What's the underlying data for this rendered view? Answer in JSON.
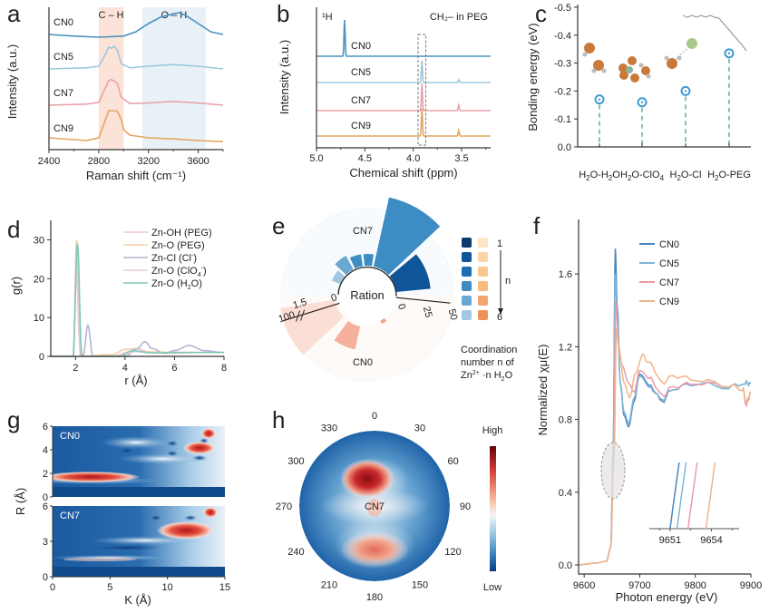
{
  "chart_data": [
    {
      "panel": "a",
      "type": "line",
      "xlabel": "Raman shift (cm⁻¹)",
      "ylabel": "Intensity (a.u.)",
      "xlim": [
        2400,
        3800
      ],
      "xticks": [
        "2400",
        "2800",
        "3200",
        "3600"
      ],
      "bands": [
        {
          "label": "C – H",
          "range": [
            2800,
            3000
          ],
          "color": "#fbe3d8"
        },
        {
          "label": "O – H",
          "range": [
            3150,
            3660
          ],
          "color": "#e8f1f8"
        }
      ],
      "series": [
        {
          "name": "CN0",
          "color": "#4b93bf",
          "x": [
            2400,
            2600,
            2800,
            2900,
            3000,
            3100,
            3200,
            3300,
            3400,
            3450,
            3500,
            3600,
            3700,
            3800
          ],
          "y": [
            0.0,
            -0.03,
            -0.05,
            -0.04,
            -0.03,
            0.05,
            0.2,
            0.32,
            0.38,
            0.4,
            0.35,
            0.2,
            0.05,
            0.0
          ]
        },
        {
          "name": "CN5",
          "color": "#9cc8de",
          "x": [
            2400,
            2700,
            2800,
            2850,
            2880,
            2900,
            2920,
            2950,
            2980,
            3050,
            3200,
            3400,
            3600,
            3800
          ],
          "y": [
            0.0,
            0.02,
            0.05,
            0.25,
            0.4,
            0.38,
            0.42,
            0.35,
            0.1,
            0.02,
            0.05,
            0.08,
            0.05,
            0.0
          ]
        },
        {
          "name": "CN7",
          "color": "#e8a3ab",
          "x": [
            2400,
            2700,
            2800,
            2850,
            2880,
            2900,
            2920,
            2950,
            2980,
            3050,
            3200,
            3400,
            3600,
            3800
          ],
          "y": [
            0.0,
            0.02,
            0.05,
            0.3,
            0.45,
            0.47,
            0.45,
            0.4,
            0.15,
            0.03,
            0.04,
            0.07,
            0.04,
            0.0
          ]
        },
        {
          "name": "CN9",
          "color": "#e5a55f",
          "x": [
            2400,
            2700,
            2800,
            2850,
            2880,
            2900,
            2950,
            2980,
            3000,
            3050,
            3200,
            3400,
            3600,
            3800
          ],
          "y": [
            0.05,
            0.0,
            0.05,
            0.35,
            0.55,
            0.55,
            0.54,
            0.4,
            0.2,
            0.1,
            0.05,
            0.03,
            0.0,
            -0.02
          ]
        }
      ]
    },
    {
      "panel": "b",
      "type": "line",
      "xlabel": "Chemical shift (ppm)",
      "ylabel": "Intensity (a.u.)",
      "xlim": [
        5.0,
        3.2
      ],
      "xticks": [
        "5.0",
        "4.5",
        "4.0",
        "3.5"
      ],
      "annotations": [
        "¹H",
        "CH₂– in PEG"
      ],
      "highlight_range": [
        3.87,
        3.95
      ],
      "series": [
        {
          "name": "CN0",
          "color": "#4b93bf",
          "peaks": [
            [
              4.71,
              1.0
            ]
          ]
        },
        {
          "name": "CN5",
          "color": "#9cc8de",
          "peaks": [
            [
              3.91,
              0.6
            ],
            [
              3.53,
              0.08
            ]
          ]
        },
        {
          "name": "CN7",
          "color": "#e8a3ab",
          "peaks": [
            [
              3.91,
              0.75
            ],
            [
              3.53,
              0.15
            ]
          ]
        },
        {
          "name": "CN9",
          "color": "#e5a55f",
          "peaks": [
            [
              3.91,
              0.75
            ],
            [
              3.53,
              0.15
            ]
          ]
        }
      ]
    },
    {
      "panel": "c",
      "type": "scatter",
      "ylabel": "Bonding energy (eV)",
      "ylim": [
        0.0,
        -0.5
      ],
      "yticks": [
        "0.0",
        "-0.1",
        "-0.2",
        "-0.3",
        "-0.4",
        "-0.5"
      ],
      "categories": [
        "H2O-H2O",
        "H2O-ClO4",
        "H2O-Cl",
        "H2O-PEG"
      ],
      "category_labels": [
        {
          "main": "H",
          "sub": "2",
          "rest": "O-H",
          "sub2": "2",
          "tail": "O"
        },
        {
          "main": "H",
          "sub": "2",
          "rest": "O-ClO",
          "sub2": "4",
          "tail": ""
        },
        {
          "main": "H",
          "sub": "2",
          "rest": "O-Cl",
          "sub2": "",
          "tail": ""
        },
        {
          "main": "H",
          "sub": "2",
          "rest": "O-PEG",
          "sub2": "",
          "tail": ""
        }
      ],
      "values": [
        -0.17,
        -0.16,
        -0.2,
        -0.335
      ],
      "color": "#3f9bd2"
    },
    {
      "panel": "d",
      "type": "line",
      "xlabel": "r (Å)",
      "ylabel": "g(r)",
      "xlim": [
        1,
        8
      ],
      "ylim": [
        0,
        35
      ],
      "xticks": [
        "2",
        "4",
        "6",
        "8"
      ],
      "yticks": [
        "0",
        "10",
        "20",
        "30"
      ],
      "series": [
        {
          "name": "Zn-OH (PEG)",
          "color": "#f0c9c9",
          "x": [
            1,
            1.9,
            2.05,
            2.15,
            2.3,
            3.5,
            4.2,
            4.6,
            5,
            6,
            7,
            8
          ],
          "y": [
            0,
            0,
            22,
            5,
            0,
            0,
            1.2,
            1.5,
            1,
            0.8,
            1,
            1
          ]
        },
        {
          "name": "Zn-O (PEG)",
          "color": "#f4cfa7",
          "x": [
            1,
            1.9,
            2.05,
            2.15,
            2.3,
            3.5,
            4,
            4.4,
            5,
            6,
            7,
            8
          ],
          "y": [
            0,
            0,
            30,
            5,
            0,
            0.5,
            1.8,
            2,
            1.2,
            1,
            1,
            1
          ]
        },
        {
          "name": "Zn-Cl (Cl⁻)",
          "color": "#b7b3d6",
          "x": [
            1,
            2.3,
            2.5,
            2.7,
            4,
            4.5,
            4.8,
            5.1,
            5.6,
            6,
            6.6,
            7.2,
            8
          ],
          "y": [
            0,
            0,
            8,
            0,
            0,
            2,
            3.8,
            2,
            0.8,
            1.5,
            2.8,
            1.5,
            1
          ]
        },
        {
          "name": "Zn-O (ClO₄⁻)",
          "color": "#eac7dc",
          "x": [
            1,
            1.9,
            2.05,
            2.2,
            3.5,
            4.2,
            4.6,
            5,
            6,
            7,
            8
          ],
          "y": [
            0,
            0,
            25,
            0,
            0,
            1,
            1.5,
            1,
            1,
            1,
            1
          ]
        },
        {
          "name": "Zn-O (H₂O)",
          "color": "#7fc8b9",
          "x": [
            1,
            1.9,
            2.08,
            2.25,
            3.8,
            4.3,
            4.6,
            5,
            6,
            7,
            8
          ],
          "y": [
            0,
            0,
            29,
            0,
            0,
            1.5,
            1.2,
            0.9,
            1,
            1,
            1
          ]
        }
      ],
      "legend_labels": [
        {
          "text": "Zn-OH (PEG)"
        },
        {
          "text": "Zn-O (PEG)"
        },
        {
          "text": "Zn-Cl (Cl",
          "sup": "-",
          "after": ")"
        },
        {
          "text": "Zn-O (ClO",
          "sub": "4",
          "sup": "-",
          "after": ")"
        },
        {
          "text": "Zn-O (H",
          "sub": "2",
          "after": "O)"
        }
      ]
    },
    {
      "panel": "e",
      "type": "bar",
      "subtype": "radial",
      "center_label": "Ration",
      "groups": [
        {
          "name": "CN7",
          "scale_ticks": [
            "0",
            "25",
            "50"
          ],
          "colors": [
            "#0b3a70",
            "#0f5599",
            "#1c6fb5",
            "#3d8dc4",
            "#6aa8d4",
            "#a2c7e3"
          ],
          "values": [
            3,
            5,
            6,
            8,
            62,
            35
          ]
        },
        {
          "name": "CN0",
          "scale_ticks": [
            "0",
            "1.5",
            "100"
          ],
          "colors": [
            "#fde4c4",
            "#fbd4a8",
            "#f9c890",
            "#f7bb7c",
            "#f2a56f",
            "#ee925a"
          ],
          "values": [
            0.2,
            0.5,
            1.2,
            100,
            0,
            0
          ]
        }
      ],
      "legend": {
        "n_first": "1",
        "n_last": "6",
        "n_label": "n",
        "caption_lines": [
          "Coordination",
          "number n of"
        ],
        "caption_formula": {
          "a": "Zn",
          "sup": "2+",
          "b": " ·n H",
          "sub": "2",
          "c": "O"
        }
      }
    },
    {
      "panel": "f",
      "type": "line",
      "xlabel": "Photon energy (eV)",
      "ylabel": "Normalized χμ(E)",
      "xlim": [
        9590,
        9900
      ],
      "ylim": [
        -0.05,
        1.9
      ],
      "xticks": [
        "9600",
        "9700",
        "9800",
        "9900"
      ],
      "yticks": [
        "0.0",
        "0.4",
        "0.8",
        "1.2",
        "1.6"
      ],
      "series": [
        {
          "name": "CN0",
          "color": "#4a86bf",
          "x": [
            9590,
            9620,
            9640,
            9648,
            9652,
            9656,
            9660,
            9665,
            9672,
            9680,
            9690,
            9700,
            9720,
            9740,
            9760,
            9800,
            9860,
            9890,
            9900
          ],
          "y": [
            0,
            0.01,
            0.02,
            0.1,
            0.6,
            1.74,
            1.4,
            1.0,
            0.82,
            0.76,
            0.9,
            1.05,
            0.98,
            0.9,
            0.97,
            1.0,
            0.98,
            1.0,
            1.0
          ]
        },
        {
          "name": "CN5",
          "color": "#7fb6d8",
          "x": [
            9590,
            9620,
            9640,
            9648,
            9652,
            9656,
            9660,
            9665,
            9672,
            9680,
            9690,
            9700,
            9720,
            9740,
            9760,
            9800,
            9860,
            9890,
            9900
          ],
          "y": [
            0,
            0.01,
            0.02,
            0.1,
            0.6,
            1.6,
            1.35,
            1.0,
            0.84,
            0.78,
            0.92,
            1.04,
            0.97,
            0.91,
            0.97,
            1.0,
            0.98,
            1.0,
            1.0
          ]
        },
        {
          "name": "CN7",
          "color": "#e99ba5",
          "x": [
            9590,
            9620,
            9640,
            9648,
            9653,
            9657,
            9662,
            9668,
            9680,
            9690,
            9700,
            9720,
            9740,
            9760,
            9800,
            9860,
            9885,
            9892,
            9900
          ],
          "y": [
            0,
            0.01,
            0.02,
            0.1,
            0.6,
            1.45,
            1.2,
            1.1,
            1.0,
            0.95,
            1.07,
            1.02,
            0.93,
            0.98,
            1.0,
            0.99,
            0.97,
            0.88,
            0.95
          ]
        },
        {
          "name": "CN9",
          "color": "#f0b48a",
          "x": [
            9590,
            9620,
            9640,
            9648,
            9654,
            9658,
            9664,
            9672,
            9682,
            9692,
            9705,
            9720,
            9740,
            9760,
            9800,
            9860,
            9885,
            9892,
            9900
          ],
          "y": [
            0,
            0.01,
            0.02,
            0.1,
            0.6,
            1.3,
            1.15,
            1.0,
            0.92,
            1.05,
            1.15,
            1.1,
            1.0,
            1.04,
            1.02,
            0.99,
            0.97,
            0.9,
            0.95
          ]
        }
      ],
      "inset": {
        "xticks": [
          "9651",
          "9654"
        ],
        "edge_positions": [
          9651.0,
          9651.5,
          9652.3,
          9653.6
        ]
      }
    },
    {
      "panel": "g",
      "type": "heatmap",
      "xlabel": "K (Å)",
      "ylabel": "R (Å)",
      "xlim": [
        0,
        15
      ],
      "xticks": [
        "0",
        "5",
        "10",
        "15"
      ],
      "subplots": [
        {
          "name": "CN0",
          "ylim": [
            0,
            6
          ],
          "yticks": [
            "0",
            "2",
            "4",
            "6"
          ]
        },
        {
          "name": "CN7",
          "ylim": [
            0,
            6
          ],
          "yticks": [
            "0",
            "3",
            "6"
          ]
        }
      ]
    },
    {
      "panel": "h",
      "type": "heatmap",
      "subtype": "polar",
      "center_label": "CN7",
      "angle_ticks": [
        "0",
        "30",
        "60",
        "90",
        "120",
        "150",
        "180",
        "210",
        "240",
        "270",
        "300",
        "330"
      ],
      "colorbar": {
        "high": "High",
        "low": "Low"
      }
    }
  ],
  "panel_labels": [
    "a",
    "b",
    "c",
    "d",
    "e",
    "f",
    "g",
    "h"
  ]
}
